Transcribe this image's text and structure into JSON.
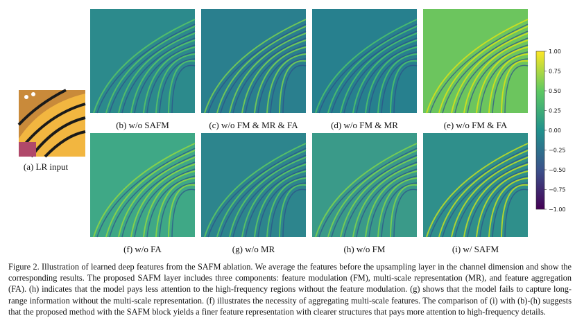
{
  "figure": {
    "input_caption": "(a) LR input",
    "panels": [
      "(b) w/o SAFM",
      "(c) w/o FM & MR & FA",
      "(d) w/o FM & MR",
      "(e) w/o FM & FA",
      "(f) w/o FA",
      "(g) w/o MR",
      "(h) w/o FM",
      "(i) w/ SAFM"
    ],
    "colorbar_ticks": [
      "1.00",
      "0.75",
      "0.50",
      "0.25",
      "0.00",
      "−0.25",
      "−0.50",
      "−0.75",
      "−1.00"
    ],
    "caption": "Figure 2. Illustration of learned deep features from the SAFM ablation. We average the features before the upsampling layer in the channel dimension and show the corresponding results. The proposed SAFM layer includes three components: feature modulation (FM), multi-scale representation (MR), and feature aggregation (FA). (h) indicates that the model pays less attention to the high-frequency regions without the feature modulation. (g) shows that the model fails to capture long-range information without the multi-scale representation. (f) illustrates the necessity of aggregating multi-scale features. The comparison of (i) with (b)-(h) suggests that the proposed method with the SAFM block yields a finer feature representation with clearer structures that pays more attention to high-frequency details."
  }
}
